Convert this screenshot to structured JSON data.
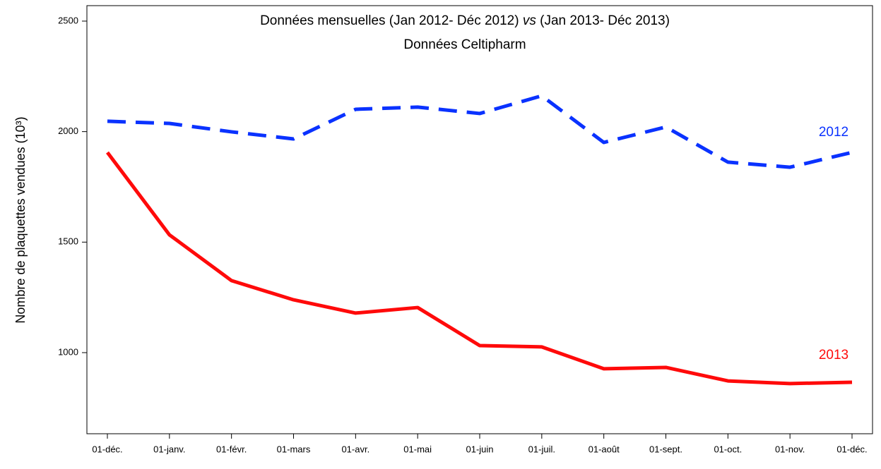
{
  "chart_data": {
    "type": "line",
    "title": [
      "Données mensuelles (Jan 2012- Déc 2012) ",
      "vs",
      " (Jan 2013- Déc 2013)"
    ],
    "subtitle": "Données Celtipharm",
    "y_label": "Nombre de plaquettes vendues (10³)",
    "categories": [
      "01-déc.",
      "01-janv.",
      "01-févr.",
      "01-mars",
      "01-avr.",
      "01-mai",
      "01-juin",
      "01-juil.",
      "01-août",
      "01-sept.",
      "01-oct.",
      "01-nov.",
      "01-déc."
    ],
    "series": [
      {
        "name": "2012",
        "color": "#0a32ff",
        "dashed": true,
        "values": [
          2047,
          2037,
          1999,
          1967,
          2101,
          2111,
          2082,
          2162,
          1951,
          2021,
          1862,
          1839,
          1906
        ]
      },
      {
        "name": "2013",
        "color": "#ff0a0a",
        "dashed": false,
        "values": [
          1906,
          1533,
          1326,
          1239,
          1179,
          1204,
          1032,
          1026,
          927,
          933,
          872,
          860,
          866
        ]
      }
    ],
    "ylim": [
      633,
      2570
    ],
    "yticks": [
      1000,
      1500,
      2000,
      2500
    ],
    "grid": false
  }
}
